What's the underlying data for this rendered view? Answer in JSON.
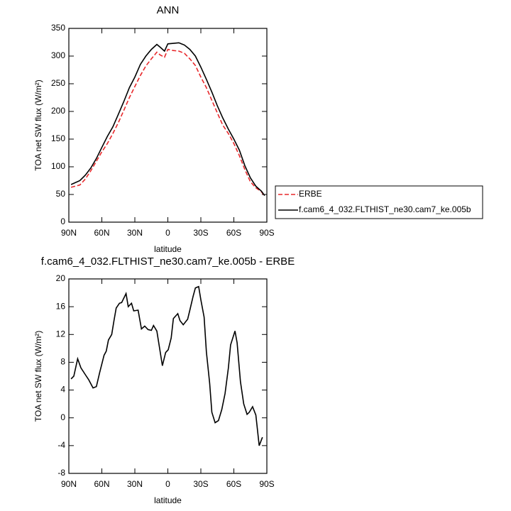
{
  "chart_data": [
    {
      "type": "line",
      "title": "ANN",
      "xlabel": "latitude",
      "ylabel": "TOA net SW flux (W/m²)",
      "x": [
        88,
        80,
        75,
        70,
        65,
        60,
        55,
        50,
        45,
        40,
        35,
        30,
        25,
        20,
        15,
        10,
        7,
        3,
        0,
        -5,
        -10,
        -15,
        -20,
        -25,
        -30,
        -35,
        -40,
        -45,
        -50,
        -55,
        -60,
        -65,
        -70,
        -75,
        -80,
        -85,
        -88
      ],
      "series": [
        {
          "name": "ERBE",
          "color": "#e8282b",
          "line_style": "dashed",
          "values": [
            63,
            67,
            78,
            93,
            110,
            127,
            142,
            160,
            180,
            202,
            225,
            245,
            265,
            282,
            295,
            307,
            302,
            298,
            312,
            310,
            309,
            305,
            295,
            283,
            262,
            243,
            220,
            197,
            175,
            160,
            142,
            120,
            95,
            73,
            62,
            55,
            47
          ]
        },
        {
          "name": "f.cam6_4_032.FLTHIST_ne30.cam7_ke.005b",
          "color": "#000000",
          "line_style": "solid",
          "values": [
            68,
            75,
            85,
            98,
            115,
            135,
            155,
            172,
            195,
            218,
            243,
            262,
            285,
            300,
            312,
            321,
            316,
            309,
            322,
            323,
            324,
            320,
            312,
            300,
            280,
            258,
            235,
            210,
            188,
            168,
            150,
            130,
            102,
            80,
            65,
            56,
            48
          ]
        }
      ],
      "xlim": [
        90,
        -90
      ],
      "xticks": [
        {
          "value": 90,
          "label": "90N"
        },
        {
          "value": 60,
          "label": "60N"
        },
        {
          "value": 30,
          "label": "30N"
        },
        0,
        {
          "value": -30,
          "label": "30S"
        },
        {
          "value": -60,
          "label": "60S"
        },
        {
          "value": -90,
          "label": "90S"
        }
      ],
      "ylim": [
        0,
        350
      ],
      "yticks": [
        0,
        50,
        100,
        150,
        200,
        250,
        300,
        350
      ]
    },
    {
      "type": "line",
      "title": "f.cam6_4_032.FLTHIST_ne30.cam7_ke.005b - ERBE",
      "xlabel": "latitude",
      "ylabel": "TOA net SW flux (W/m²)",
      "x": [
        88,
        85.5,
        82,
        79,
        75,
        72,
        68,
        65,
        62,
        58,
        56,
        54,
        51,
        49,
        47,
        44,
        42,
        38,
        36,
        33,
        31,
        27,
        24,
        21,
        18,
        15,
        13,
        10,
        7,
        5,
        2,
        -0.3,
        -3,
        -5,
        -9,
        -11,
        -14,
        -18,
        -20,
        -23,
        -25,
        -28,
        -30,
        -33,
        -35,
        -38,
        -40,
        -43,
        -46,
        -49,
        -52,
        -55,
        -57,
        -61,
        -63,
        -66,
        -69,
        -72,
        -74,
        -77,
        -80,
        -83,
        -86
      ],
      "series": [
        {
          "color": "#000000",
          "line_style": "solid",
          "values": [
            5.6,
            6,
            8.5,
            7.2,
            6.2,
            5.5,
            4.3,
            4.5,
            6.5,
            9,
            9.6,
            11.2,
            12,
            14,
            15.8,
            16.5,
            16.6,
            17.9,
            16,
            16.5,
            15.4,
            15.5,
            12.8,
            13.2,
            12.7,
            12.6,
            13.3,
            12.5,
            9.5,
            7.5,
            9.4,
            9.8,
            11.5,
            14.3,
            15,
            14,
            13.4,
            14.2,
            15.5,
            17.5,
            18.7,
            18.9,
            17,
            14.5,
            9.5,
            5,
            0.8,
            -0.7,
            -0.4,
            1.2,
            3.5,
            7.2,
            10.5,
            12.5,
            10.8,
            5.2,
            2,
            0.5,
            0.8,
            1.6,
            0.4,
            -4,
            -2.8
          ]
        }
      ],
      "xlim": [
        90,
        -90
      ],
      "xticks": [
        {
          "value": 90,
          "label": "90N"
        },
        {
          "value": 60,
          "label": "60N"
        },
        {
          "value": 30,
          "label": "30N"
        },
        0,
        {
          "value": -30,
          "label": "30S"
        },
        {
          "value": -60,
          "label": "60S"
        },
        {
          "value": -90,
          "label": "90S"
        }
      ],
      "ylim": [
        -8,
        20
      ],
      "yticks": [
        -8,
        -4,
        0,
        4,
        8,
        12,
        16,
        20
      ]
    }
  ]
}
